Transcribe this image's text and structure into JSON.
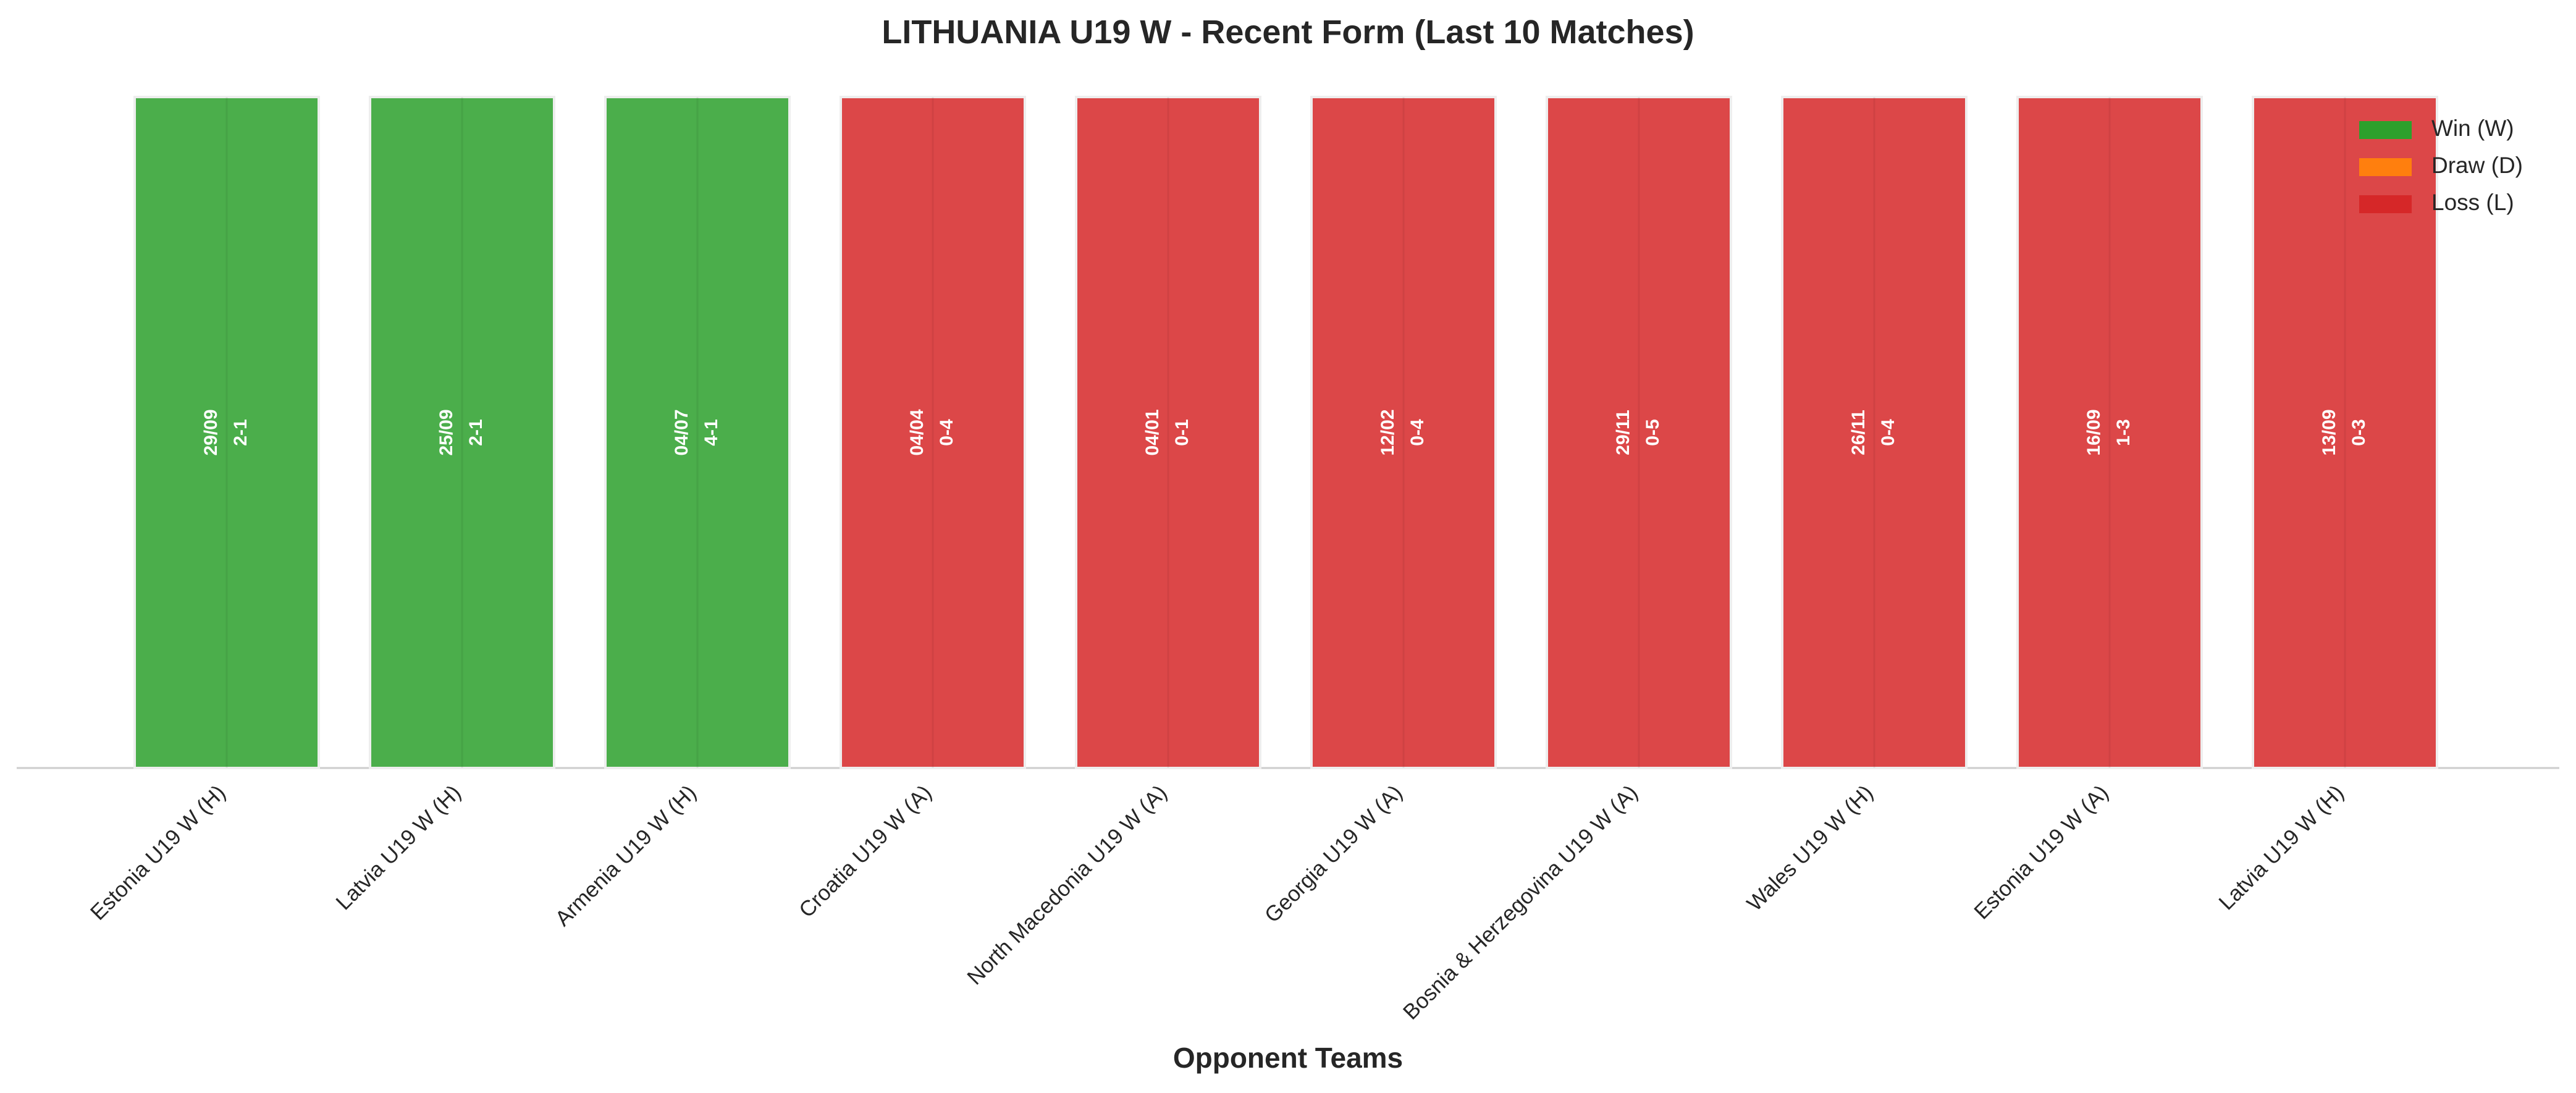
{
  "chart_data": {
    "type": "bar",
    "title": "LITHUANIA U19 W - Recent Form (Last 10 Matches)",
    "x_label": "Opponent Teams",
    "categories": [
      "Estonia U19 W (H)",
      "Latvia U19 W (H)",
      "Armenia U19 W (H)",
      "Croatia U19 W (A)",
      "North Macedonia U19 W (A)",
      "Georgia U19 W (A)",
      "Bosnia & Herzegovina U19 W (A)",
      "Wales U19 W (H)",
      "Estonia U19 W (A)",
      "Latvia U19 W (H)"
    ],
    "values": [
      1,
      1,
      1,
      1,
      1,
      1,
      1,
      1,
      1,
      1
    ],
    "dates": [
      "29/09",
      "25/09",
      "04/07",
      "04/04",
      "04/01",
      "12/02",
      "29/11",
      "26/11",
      "16/09",
      "13/09"
    ],
    "scores": [
      "2-1",
      "2-1",
      "4-1",
      "0-4",
      "0-1",
      "0-4",
      "0-5",
      "0-4",
      "1-3",
      "0-3"
    ],
    "colors": [
      "#2ca02c",
      "#2ca02c",
      "#2ca02c",
      "#d62728",
      "#d62728",
      "#d62728",
      "#d62728",
      "#d62728",
      "#d62728",
      "#d62728"
    ],
    "ylim": [
      0,
      1
    ],
    "legend": [
      {
        "name": "Win (W)",
        "color": "#2ca02c"
      },
      {
        "name": "Draw (D)",
        "color": "#ff7f0e"
      },
      {
        "name": "Loss (L)",
        "color": "#d62728"
      }
    ],
    "legend_position": "upper right"
  }
}
